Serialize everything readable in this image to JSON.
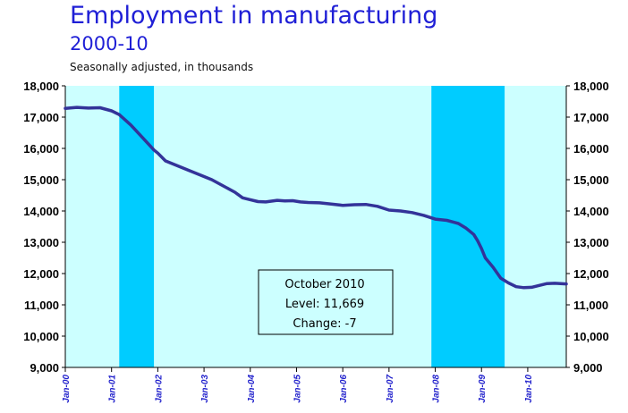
{
  "header": {
    "title": "Employment in manufacturing",
    "subtitle": "2000-10",
    "note": "Seasonally adjusted, in thousands"
  },
  "colors": {
    "plot_bg": "#ccffff",
    "recession": "#00ccff",
    "line": "#333399",
    "title": "#1f1fd6",
    "x_labels": "#2222cc"
  },
  "annotation": {
    "line1": "October 2010",
    "line2": "Level: 11,669",
    "line3": "Change: -7"
  },
  "chart_data": {
    "type": "line",
    "ylim": [
      9000,
      18000
    ],
    "y_ticks": [
      9000,
      10000,
      11000,
      12000,
      13000,
      14000,
      15000,
      16000,
      17000,
      18000
    ],
    "y_tick_labels": [
      "9,000",
      "10,000",
      "11,000",
      "12,000",
      "13,000",
      "14,000",
      "15,000",
      "16,000",
      "17,000",
      "18,000"
    ],
    "x_tick_labels": [
      "Jan-00",
      "Jan-01",
      "Jan-02",
      "Jan-03",
      "Jan-04",
      "Jan-05",
      "Jan-06",
      "Jan-07",
      "Jan-08",
      "Jan-09",
      "Jan-10"
    ],
    "x_tick_months": [
      0,
      12,
      24,
      36,
      48,
      60,
      72,
      84,
      96,
      108,
      120
    ],
    "x_range_months": [
      0,
      130
    ],
    "grid": false,
    "recessions": [
      {
        "start": "Mar-01",
        "end": "Nov-01",
        "start_month": 14,
        "end_month": 23
      },
      {
        "start": "Dec-07",
        "end": "Jun-09",
        "start_month": 95,
        "end_month": 114
      }
    ],
    "series": [
      {
        "points": [
          [
            0,
            17280
          ],
          [
            3,
            17310
          ],
          [
            6,
            17290
          ],
          [
            9,
            17300
          ],
          [
            12,
            17200
          ],
          [
            14,
            17080
          ],
          [
            17,
            16750
          ],
          [
            20,
            16350
          ],
          [
            23,
            15950
          ],
          [
            24,
            15850
          ],
          [
            26,
            15600
          ],
          [
            29,
            15450
          ],
          [
            32,
            15300
          ],
          [
            35,
            15150
          ],
          [
            38,
            15000
          ],
          [
            41,
            14800
          ],
          [
            44,
            14600
          ],
          [
            46,
            14420
          ],
          [
            48,
            14360
          ],
          [
            50,
            14300
          ],
          [
            52,
            14290
          ],
          [
            55,
            14340
          ],
          [
            57,
            14320
          ],
          [
            59,
            14330
          ],
          [
            61,
            14290
          ],
          [
            63,
            14270
          ],
          [
            66,
            14260
          ],
          [
            69,
            14220
          ],
          [
            72,
            14180
          ],
          [
            75,
            14200
          ],
          [
            78,
            14210
          ],
          [
            81,
            14150
          ],
          [
            84,
            14030
          ],
          [
            87,
            14000
          ],
          [
            90,
            13950
          ],
          [
            93,
            13860
          ],
          [
            96,
            13740
          ],
          [
            99,
            13700
          ],
          [
            102,
            13600
          ],
          [
            104,
            13450
          ],
          [
            106,
            13250
          ],
          [
            107,
            13050
          ],
          [
            108,
            12800
          ],
          [
            109,
            12500
          ],
          [
            111,
            12200
          ],
          [
            113,
            11850
          ],
          [
            115,
            11700
          ],
          [
            117,
            11580
          ],
          [
            119,
            11550
          ],
          [
            121,
            11560
          ],
          [
            123,
            11620
          ],
          [
            125,
            11680
          ],
          [
            127,
            11690
          ],
          [
            130,
            11669
          ]
        ]
      }
    ]
  }
}
